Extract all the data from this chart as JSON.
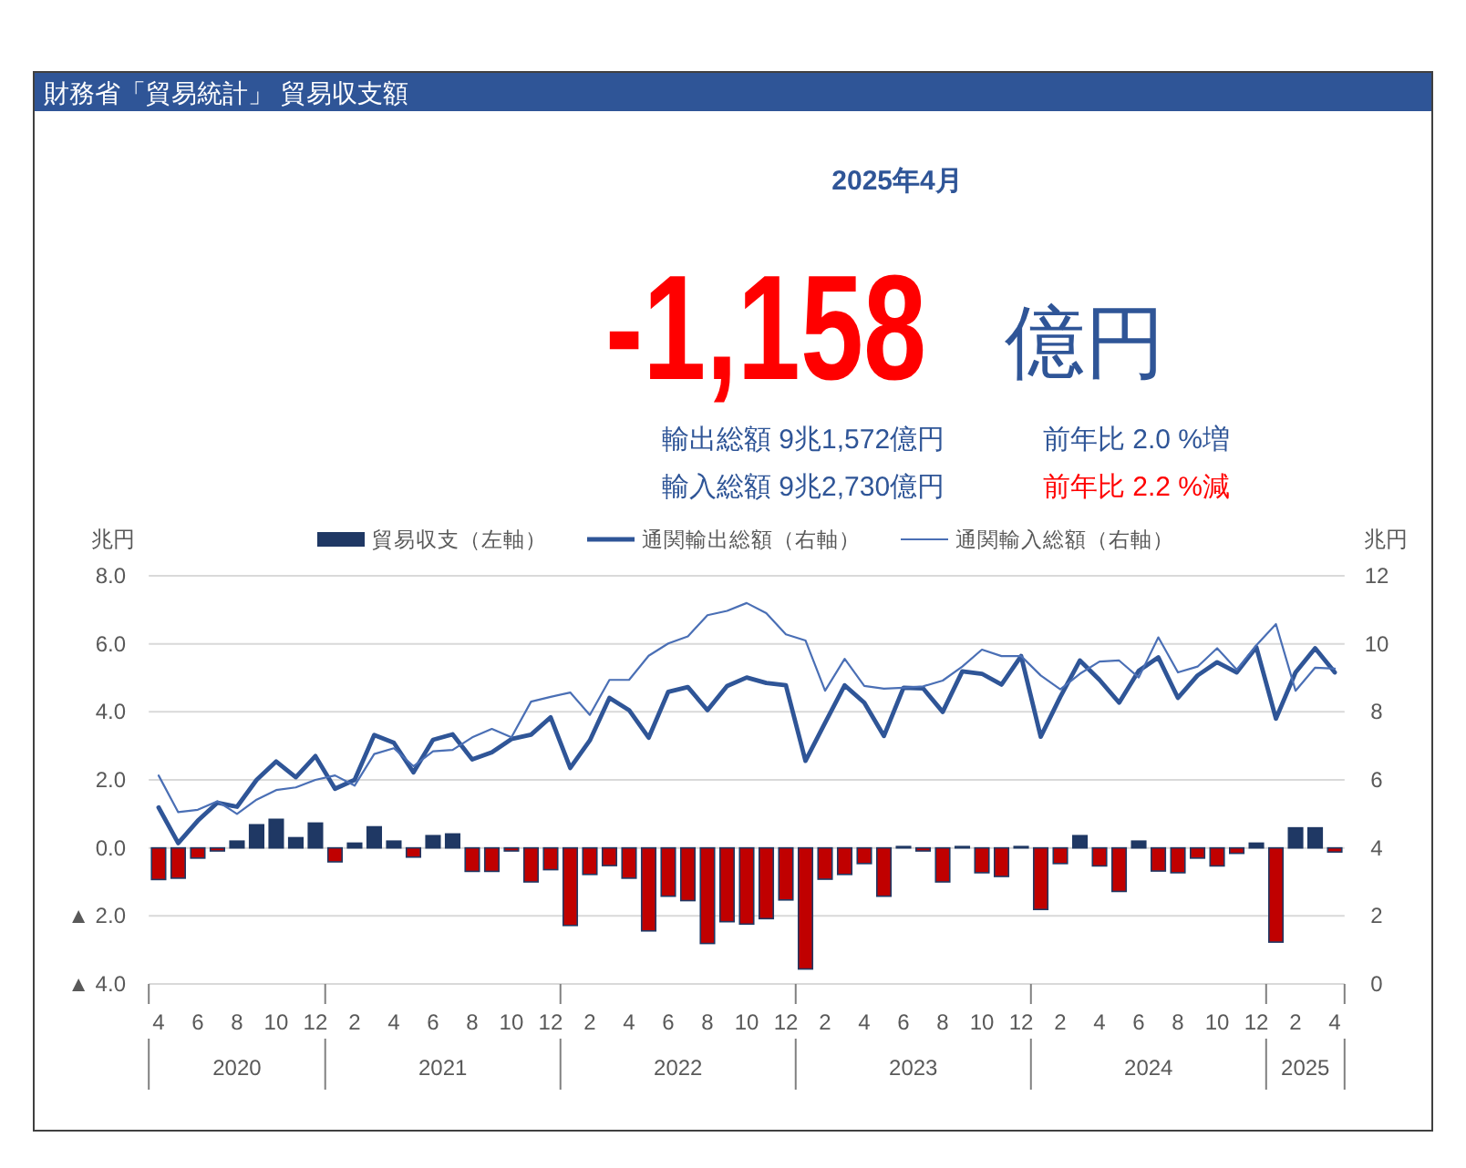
{
  "chart_data": {
    "type": "bar",
    "title": "財務省「貿易統計」 貿易収支額",
    "subtitle": "2025年4月",
    "annotations": [
      "-1,158",
      "億円",
      "輸出総額 9兆1,572億円",
      "前年比 2.0 %増",
      "輸入総額 9兆2,730億円",
      "前年比 2.2 %減",
      "2020",
      "2021",
      "2022",
      "2023",
      "2024",
      "2025"
    ],
    "ylabel": "兆円",
    "y2label": "兆円",
    "categories": [
      "4",
      null,
      "6",
      null,
      "8",
      null,
      "10",
      null,
      "12",
      null,
      "2",
      null,
      "4",
      null,
      "6",
      null,
      "8",
      null,
      "10",
      null,
      "12",
      null,
      "2",
      null,
      "4",
      null,
      "6",
      null,
      "8",
      null,
      "10",
      null,
      "12",
      null,
      "2",
      null,
      "4",
      null,
      "6",
      null,
      "8",
      null,
      "10",
      null,
      "12",
      null,
      "2",
      null,
      "4",
      null,
      "6",
      null,
      "8",
      null,
      "10",
      null,
      "12",
      null,
      "2",
      null,
      "4"
    ],
    "series": [
      {
        "name": "貿易収支（左軸）",
        "color": "#1f3864",
        "colors": [
          "#c00000",
          "#c00000",
          "#c00000",
          "#c00000",
          "#1f3864",
          "#1f3864",
          "#1f3864",
          "#1f3864",
          "#1f3864",
          "#c00000",
          "#1f3864",
          "#1f3864",
          "#1f3864",
          "#c00000",
          "#1f3864",
          "#1f3864",
          "#c00000",
          "#c00000",
          "#c00000",
          "#c00000",
          "#c00000",
          "#c00000",
          "#c00000",
          "#c00000",
          "#c00000",
          "#c00000",
          "#c00000",
          "#c00000",
          "#c00000",
          "#c00000",
          "#c00000",
          "#c00000",
          "#c00000",
          "#c00000",
          "#c00000",
          "#c00000",
          "#c00000",
          "#c00000",
          "#1f3864",
          "#c00000",
          "#c00000",
          "#1f3864",
          "#c00000",
          "#c00000",
          "#1f3864",
          "#c00000",
          "#c00000",
          "#1f3864",
          "#c00000",
          "#c00000",
          "#1f3864",
          "#c00000",
          "#c00000",
          "#c00000",
          "#c00000",
          "#c00000",
          "#1f3864",
          "#c00000",
          "#1f3864",
          "#1f3864",
          "#c00000"
        ],
        "values": [
          -0.93,
          -0.89,
          -0.3,
          -0.09,
          0.2,
          0.68,
          0.84,
          0.3,
          0.73,
          -0.41,
          0.14,
          0.62,
          0.2,
          -0.27,
          0.36,
          0.41,
          -0.69,
          -0.69,
          -0.09,
          -1.0,
          -0.64,
          -2.28,
          -0.78,
          -0.52,
          -0.89,
          -2.44,
          -1.42,
          -1.55,
          -2.81,
          -2.17,
          -2.24,
          -2.08,
          -1.53,
          -3.56,
          -0.92,
          -0.78,
          -0.46,
          -1.42,
          0.04,
          -0.09,
          -1.0,
          0.04,
          -0.73,
          -0.84,
          0.04,
          -1.81,
          -0.46,
          0.36,
          -0.53,
          -1.28,
          0.2,
          -0.68,
          -0.73,
          -0.3,
          -0.53,
          -0.16,
          0.14,
          -2.77,
          0.59,
          0.59,
          -0.12
        ]
      },
      {
        "name": "通関輸出総額（右軸）",
        "type": "line",
        "axis": "y2",
        "color": "#2f5597",
        "values": [
          5.19,
          4.14,
          4.8,
          5.33,
          5.21,
          6.0,
          6.54,
          6.08,
          6.7,
          5.74,
          6.0,
          7.32,
          7.09,
          6.22,
          7.18,
          7.34,
          6.6,
          6.81,
          7.2,
          7.33,
          7.84,
          6.35,
          7.16,
          8.41,
          8.05,
          7.24,
          8.59,
          8.73,
          8.05,
          8.76,
          9.01,
          8.85,
          8.78,
          6.56,
          7.68,
          8.78,
          8.27,
          7.29,
          8.71,
          8.69,
          8.0,
          9.19,
          9.12,
          8.8,
          9.64,
          7.27,
          8.44,
          9.51,
          8.94,
          8.27,
          9.21,
          9.6,
          8.41,
          9.07,
          9.46,
          9.16,
          9.9,
          7.8,
          9.16,
          9.87,
          9.16
        ]
      },
      {
        "name": "通関輸入総額（右軸）",
        "type": "line",
        "axis": "y2",
        "color": "#4a6fb5",
        "values": [
          6.13,
          5.05,
          5.12,
          5.37,
          5.0,
          5.42,
          5.7,
          5.78,
          6.0,
          6.13,
          5.83,
          6.76,
          6.93,
          6.4,
          6.84,
          6.88,
          7.25,
          7.5,
          7.25,
          8.3,
          8.44,
          8.57,
          7.91,
          8.94,
          8.94,
          9.65,
          10.01,
          10.22,
          10.84,
          10.97,
          11.2,
          10.9,
          10.28,
          10.1,
          8.62,
          9.56,
          8.76,
          8.68,
          8.71,
          8.75,
          8.92,
          9.33,
          9.83,
          9.64,
          9.64,
          9.07,
          8.66,
          9.12,
          9.48,
          9.51,
          9.01,
          10.19,
          9.16,
          9.33,
          9.87,
          9.24,
          9.96,
          10.58,
          8.62,
          9.3,
          9.27
        ]
      }
    ],
    "ylim": [
      -4,
      8
    ],
    "yticks": [
      {
        "value": 8,
        "label": "8.0"
      },
      {
        "value": 6,
        "label": "6.0"
      },
      {
        "value": 4,
        "label": "4.0"
      },
      {
        "value": 2,
        "label": "2.0"
      },
      {
        "value": 0,
        "label": "0.0"
      },
      {
        "value": -2,
        "label": "▲ 2.0"
      },
      {
        "value": -4,
        "label": "▲ 4.0"
      }
    ],
    "y2lim": [
      0,
      12
    ],
    "y2ticks": [
      0,
      2,
      4,
      6,
      8,
      10,
      12
    ],
    "grid": "y",
    "legend": "top",
    "marker": "none",
    "line_style": "solid"
  }
}
